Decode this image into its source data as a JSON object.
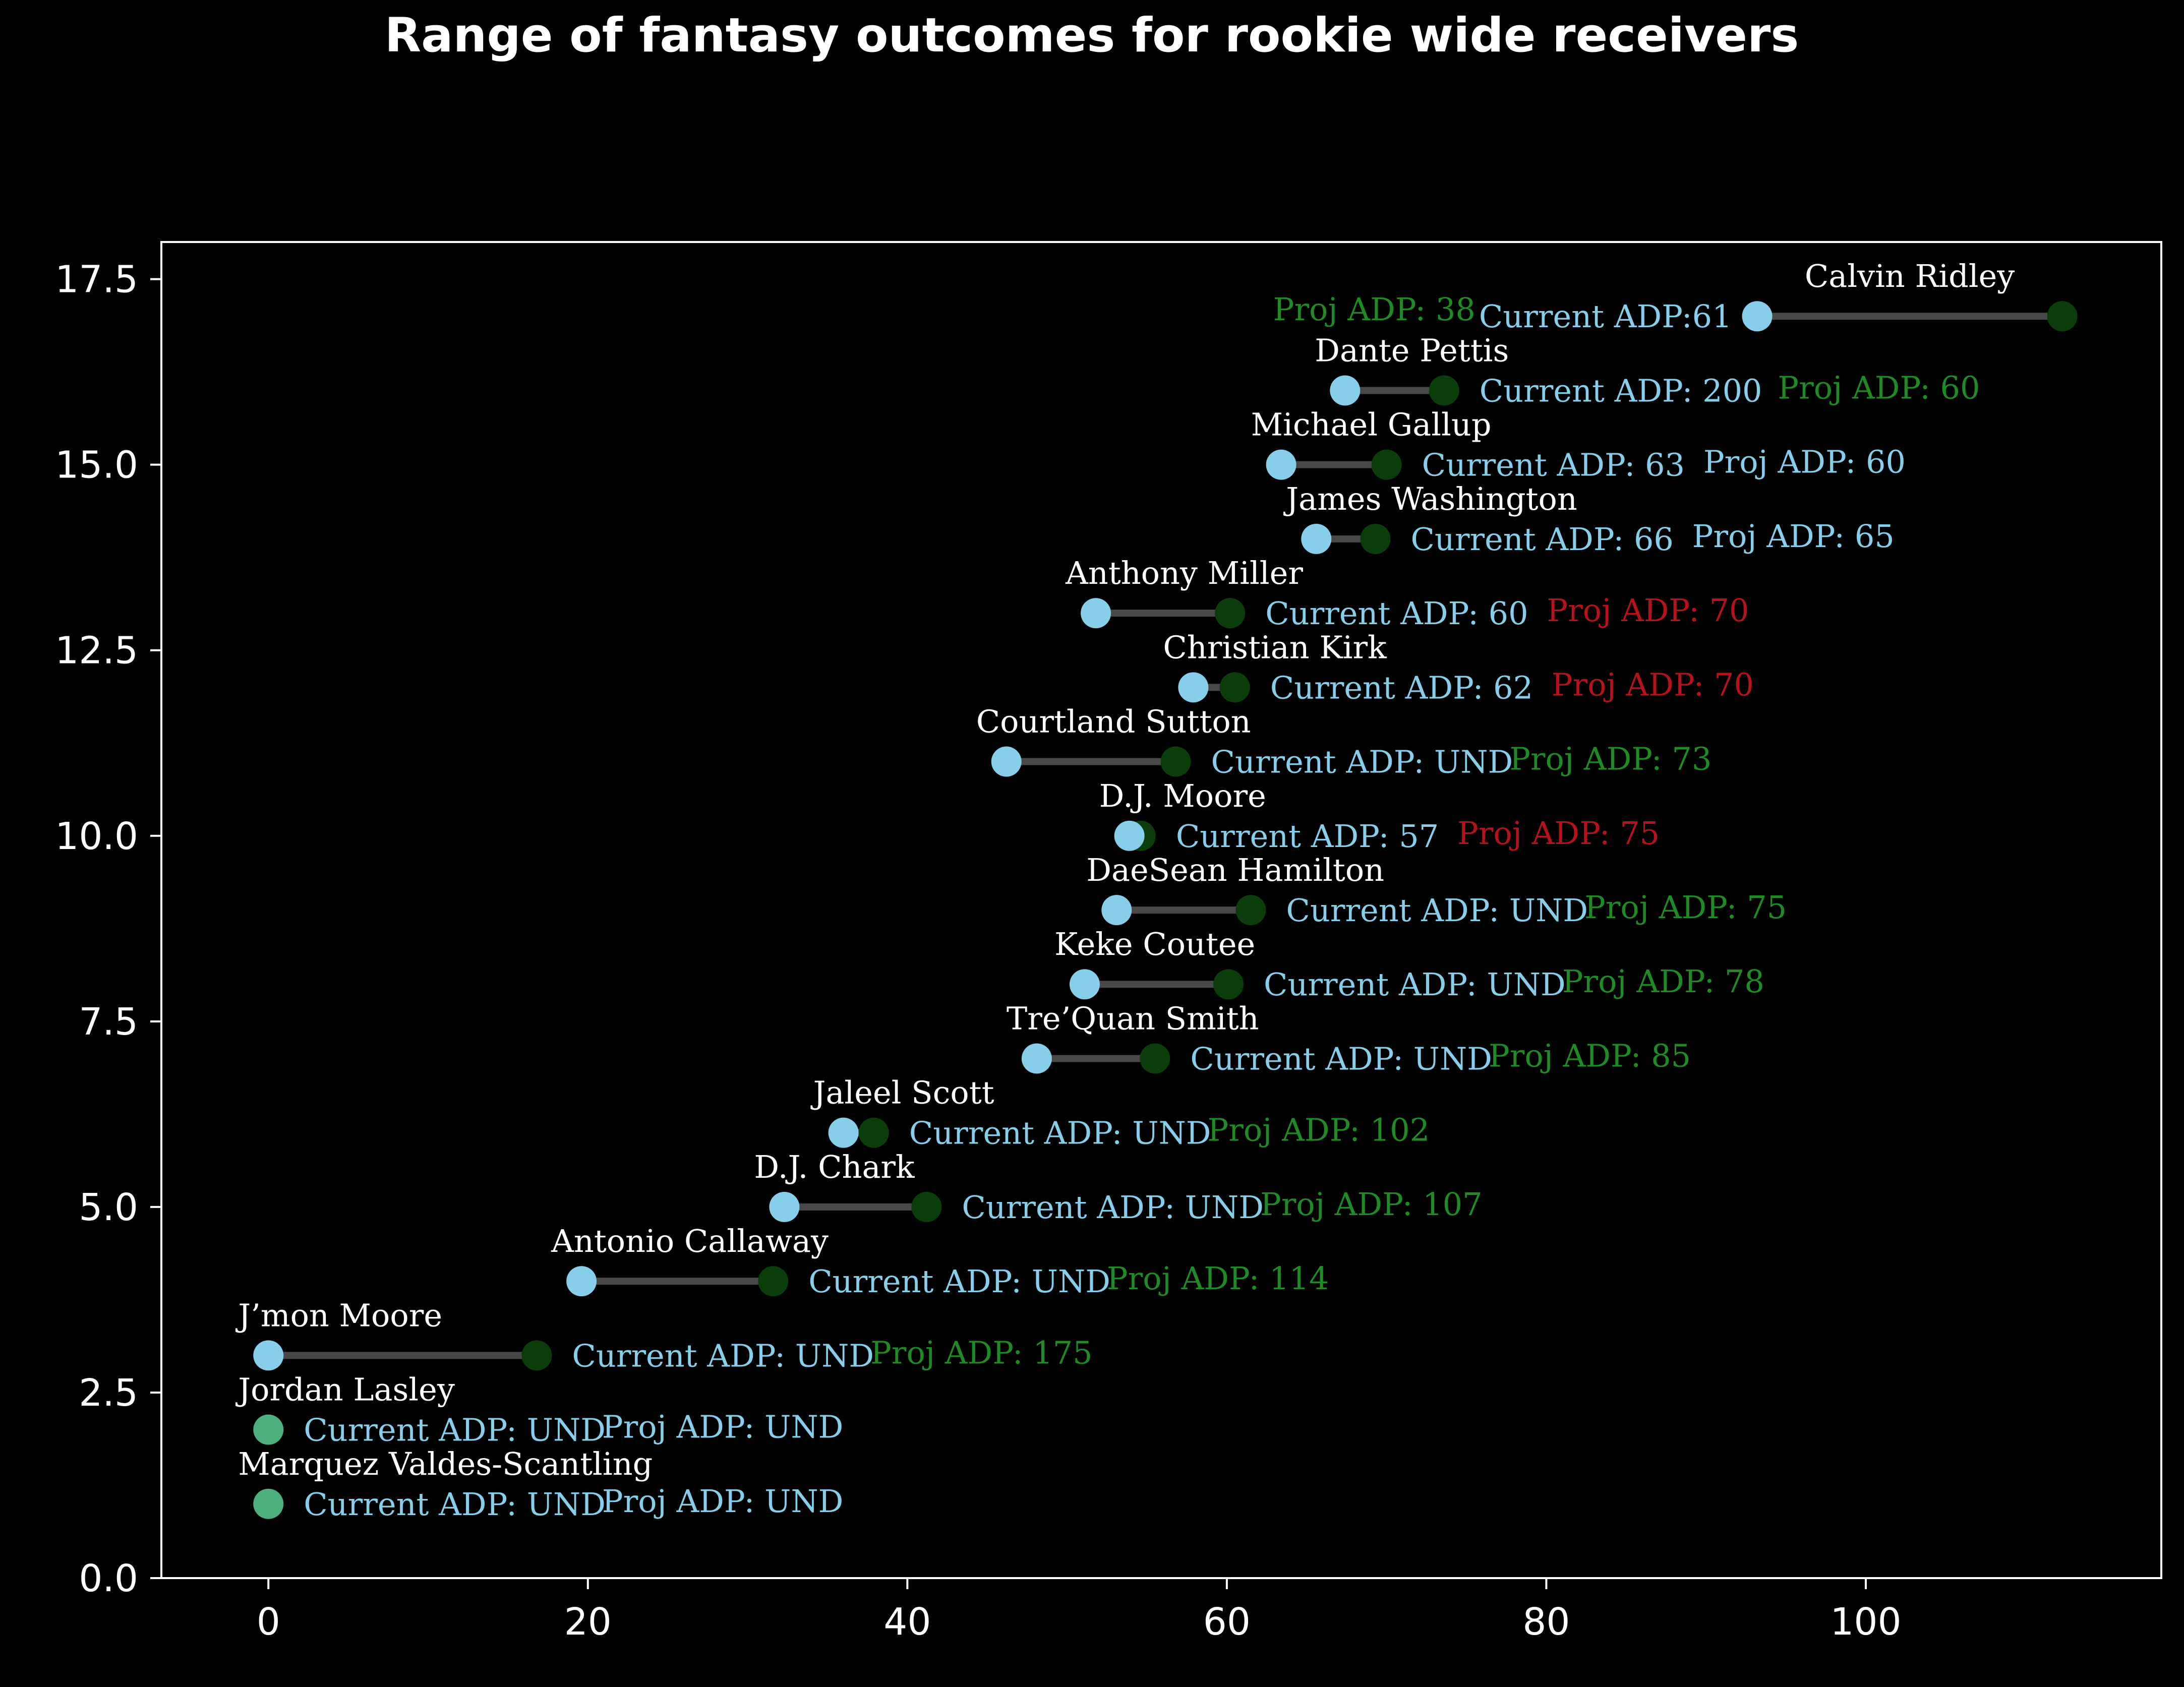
{
  "chart_data": {
    "type": "scatter",
    "title": "Range of fantasy outcomes for rookie wide receivers",
    "xlabel": "",
    "ylabel": "",
    "xlim": [
      -6.7,
      118.5
    ],
    "ylim": [
      0,
      18
    ],
    "x_ticks": [
      0,
      20,
      40,
      60,
      80,
      100
    ],
    "y_ticks": [
      0.0,
      2.5,
      5.0,
      7.5,
      10.0,
      12.5,
      15.0,
      17.5
    ],
    "x_tick_labels": [
      "0",
      "20",
      "40",
      "60",
      "80",
      "100"
    ],
    "y_tick_labels": [
      "0.0",
      "2.5",
      "5.0",
      "7.5",
      "10.0",
      "12.5",
      "15.0",
      "17.5"
    ],
    "grid": false,
    "colors": {
      "background": "#000000",
      "start_marker": "#87ceeb",
      "end_marker": "#0b3d0b",
      "connector": "#555555",
      "name_label": "#ffffff",
      "current_label": "#87ceeb",
      "proj_good": "#1f8b24",
      "proj_bad": "#b5121b",
      "proj_neutral": "#87ceeb",
      "undrafted_marker": "#4caf7d"
    },
    "players": [
      {
        "name": "Calvin Ridley",
        "y": 17,
        "x_start": 93.2,
        "x_end": 112.3,
        "current": "Current ADP:61",
        "proj": "Proj ADP: 38",
        "proj_status": "good",
        "label_layout": "left"
      },
      {
        "name": "Dante Pettis",
        "y": 16,
        "x_start": 67.4,
        "x_end": 73.6,
        "current": "Current ADP: 200",
        "proj": "Proj ADP: 60",
        "proj_status": "good"
      },
      {
        "name": "Michael Gallup",
        "y": 15,
        "x_start": 63.4,
        "x_end": 70.0,
        "current": "Current ADP: 63",
        "proj": "Proj ADP: 60",
        "proj_status": "neutral"
      },
      {
        "name": "James Washington",
        "y": 14,
        "x_start": 65.6,
        "x_end": 69.3,
        "current": "Current ADP: 66",
        "proj": "Proj ADP: 65",
        "proj_status": "neutral"
      },
      {
        "name": "Anthony Miller",
        "y": 13,
        "x_start": 51.8,
        "x_end": 60.2,
        "current": "Current ADP: 60",
        "proj": "Proj ADP: 70",
        "proj_status": "bad"
      },
      {
        "name": "Christian Kirk",
        "y": 12,
        "x_start": 57.9,
        "x_end": 60.5,
        "current": "Current ADP: 62",
        "proj": "Proj ADP: 70",
        "proj_status": "bad"
      },
      {
        "name": "Courtland Sutton",
        "y": 11,
        "x_start": 46.2,
        "x_end": 56.8,
        "current": "Current ADP: UND",
        "proj": "Proj ADP: 73",
        "proj_status": "good"
      },
      {
        "name": "D.J. Moore",
        "y": 10,
        "x_start": 53.9,
        "x_end": 54.6,
        "current": "Current ADP: 57",
        "proj": "Proj ADP: 75",
        "proj_status": "bad"
      },
      {
        "name": "DaeSean Hamilton",
        "y": 9,
        "x_start": 53.1,
        "x_end": 61.5,
        "current": "Current ADP: UND",
        "proj": "Proj ADP: 75",
        "proj_status": "good"
      },
      {
        "name": "Keke Coutee",
        "y": 8,
        "x_start": 51.1,
        "x_end": 60.1,
        "current": "Current ADP: UND",
        "proj": "Proj ADP: 78",
        "proj_status": "good"
      },
      {
        "name": "Tre’Quan Smith",
        "y": 7,
        "x_start": 48.1,
        "x_end": 55.5,
        "current": "Current ADP: UND",
        "proj": "Proj ADP: 85",
        "proj_status": "good"
      },
      {
        "name": "Jaleel Scott",
        "y": 6,
        "x_start": 36.0,
        "x_end": 37.9,
        "current": "Current ADP: UND",
        "proj": "Proj ADP: 102",
        "proj_status": "good"
      },
      {
        "name": "D.J. Chark",
        "y": 5,
        "x_start": 32.3,
        "x_end": 41.2,
        "current": "Current ADP: UND",
        "proj": "Proj ADP: 107",
        "proj_status": "good"
      },
      {
        "name": "Antonio Callaway",
        "y": 4,
        "x_start": 19.6,
        "x_end": 31.6,
        "current": "Current ADP: UND",
        "proj": "Proj ADP: 114",
        "proj_status": "good"
      },
      {
        "name": "J’mon Moore",
        "y": 3,
        "x_start": 0.0,
        "x_end": 16.8,
        "current": "Current ADP: UND",
        "proj": "Proj ADP: 175",
        "proj_status": "good"
      },
      {
        "name": "Jordan Lasley",
        "y": 2,
        "x_start": 0.0,
        "x_end": 0.0,
        "current": "Current ADP: UND",
        "proj": "Proj ADP: UND",
        "proj_status": "neutral",
        "undrafted": true
      },
      {
        "name": "Marquez Valdes-Scantling",
        "y": 1,
        "x_start": 0.0,
        "x_end": 0.0,
        "current": "Current ADP: UND",
        "proj": "Proj ADP: UND",
        "proj_status": "neutral",
        "undrafted": true
      }
    ]
  }
}
